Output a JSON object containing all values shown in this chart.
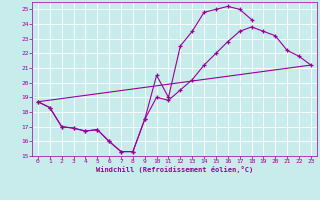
{
  "xlabel": "Windchill (Refroidissement éolien,°C)",
  "bg_color": "#c8ecec",
  "grid_color": "#b8dada",
  "line_color": "#990099",
  "xlim": [
    -0.5,
    23.5
  ],
  "ylim": [
    15,
    25.5
  ],
  "xticks": [
    0,
    1,
    2,
    3,
    4,
    5,
    6,
    7,
    8,
    9,
    10,
    11,
    12,
    13,
    14,
    15,
    16,
    17,
    18,
    19,
    20,
    21,
    22,
    23
  ],
  "yticks": [
    15,
    16,
    17,
    18,
    19,
    20,
    21,
    22,
    23,
    24,
    25
  ],
  "line1_x": [
    0,
    1,
    2,
    3,
    4,
    5,
    6,
    7,
    8,
    9,
    10,
    11,
    12,
    13,
    14,
    15,
    16,
    17,
    18
  ],
  "line1_y": [
    18.7,
    18.3,
    17.0,
    16.9,
    16.7,
    16.8,
    16.0,
    15.3,
    15.3,
    17.5,
    20.5,
    19.0,
    22.5,
    23.5,
    24.8,
    25.0,
    25.2,
    25.0,
    24.3
  ],
  "line2_x": [
    0,
    1,
    2,
    3,
    4,
    5,
    6,
    7,
    8,
    9,
    10,
    11,
    12,
    13,
    14,
    15,
    16,
    17,
    18,
    19,
    20,
    21,
    22,
    23
  ],
  "line2_y": [
    18.7,
    18.3,
    17.0,
    16.9,
    16.7,
    16.8,
    16.0,
    15.3,
    15.3,
    17.5,
    19.0,
    18.8,
    19.5,
    20.2,
    21.2,
    22.0,
    22.8,
    23.5,
    23.8,
    23.5,
    23.2,
    22.2,
    21.8,
    21.2
  ],
  "line3_x": [
    0,
    23
  ],
  "line3_y": [
    18.7,
    21.2
  ]
}
